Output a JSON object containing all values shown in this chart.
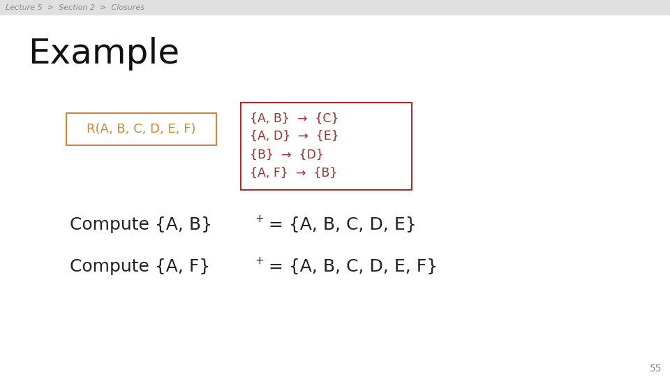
{
  "background_color": "#f0f0f0",
  "slide_bg": "#ffffff",
  "breadcrumb": "Lecture 5  >  Section 2  >  Closures",
  "breadcrumb_color": "#888888",
  "breadcrumb_fontsize": 8,
  "title": "Example",
  "title_fontsize": 36,
  "title_color": "#111111",
  "r_box_text": "R(A, B, C, D, E, F)",
  "r_box_color": "#cc8833",
  "r_box_border": "#cc8833",
  "fd_box_lines": [
    "{A, B}  →  {C}",
    "{A, D}  →  {E}",
    "{B}  →  {D}",
    "{A, F}  →  {B}"
  ],
  "fd_box_color": "#993333",
  "fd_box_border": "#993333",
  "compute1_main": "Compute {A, B}",
  "compute1_sup": "+",
  "compute1_rest": " = {A, B, C, D, E}",
  "compute2_main": "Compute {A, F}",
  "compute2_sup": "+",
  "compute2_rest": " = {A, B, C, D, E, F}",
  "compute_color": "#222222",
  "compute_fontsize": 18,
  "page_number": "55",
  "page_number_color": "#888888",
  "page_number_fontsize": 10
}
